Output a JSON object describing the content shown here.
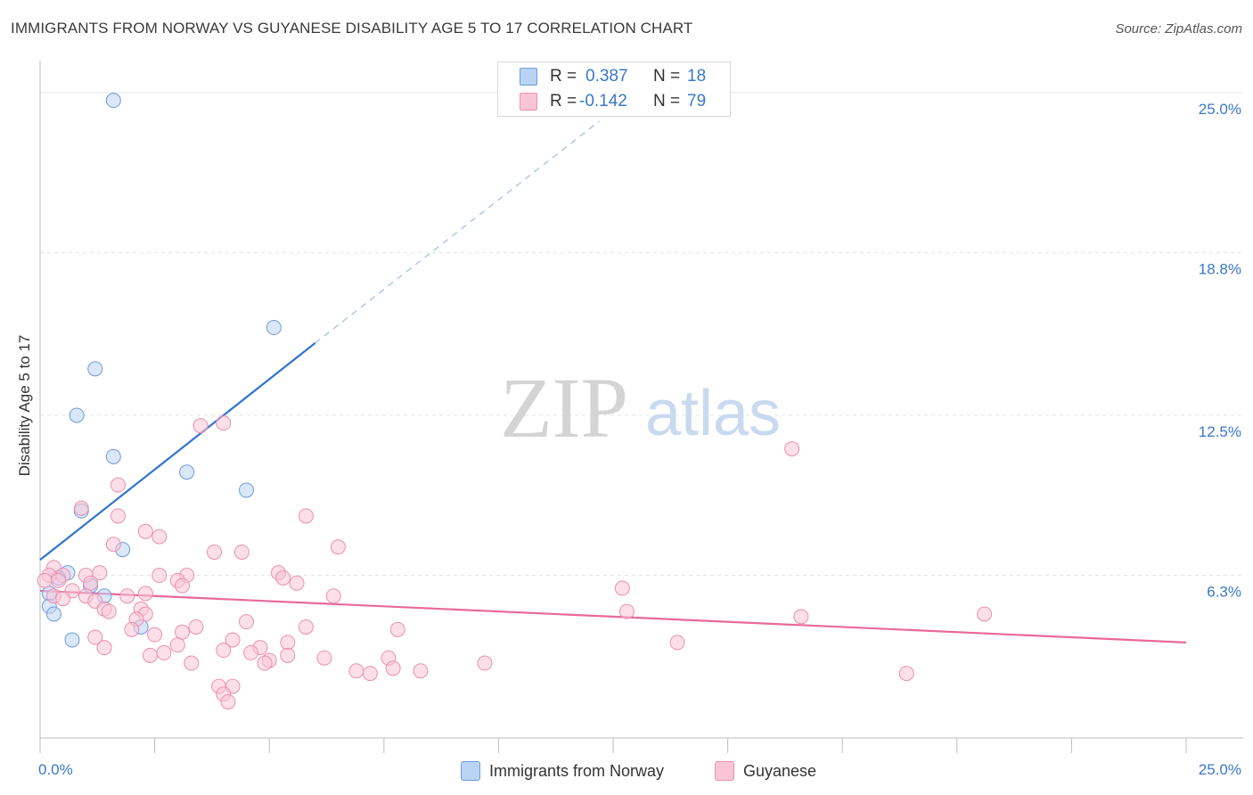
{
  "header": {
    "title": "IMMIGRANTS FROM NORWAY VS GUYANESE DISABILITY AGE 5 TO 17 CORRELATION CHART",
    "source": "Source: ZipAtlas.com"
  },
  "watermark": {
    "zip": "ZIP",
    "atlas": "atlas"
  },
  "legend": {
    "r_label": "R =",
    "n_label": "N =",
    "norway": {
      "r": "0.387",
      "n": "18"
    },
    "guyanese": {
      "r": "-0.142",
      "n": "79"
    }
  },
  "colors": {
    "norway_fill": "#b9d3f4",
    "norway_stroke": "#6f9bd8",
    "norway_line": "#2f74d0",
    "guyanese_fill": "#f9c5d6",
    "guyanese_stroke": "#ec8fb0",
    "guyanese_line": "#e8699a",
    "axis_text": "#3a78c9",
    "grid": "#e4e4e4"
  },
  "chart_data": {
    "type": "scatter",
    "title": "IMMIGRANTS FROM NORWAY VS GUYANESE DISABILITY AGE 5 TO 17 CORRELATION CHART",
    "xlabel": "",
    "ylabel": "Disability Age 5 to 17",
    "xlim": [
      0,
      25
    ],
    "ylim": [
      0,
      26
    ],
    "x_tick_labels": [
      "0.0%",
      "25.0%"
    ],
    "y_tick_labels": [
      "6.3%",
      "12.5%",
      "18.8%",
      "25.0%"
    ],
    "y_ticks": [
      6.3,
      12.5,
      18.8,
      25.0
    ],
    "grid": true,
    "legend_position": "top-center",
    "series": [
      {
        "name": "Immigrants from Norway",
        "color": "#b9d3f4",
        "points": [
          [
            1.6,
            24.7
          ],
          [
            5.1,
            15.9
          ],
          [
            1.2,
            14.3
          ],
          [
            0.8,
            12.5
          ],
          [
            1.6,
            10.9
          ],
          [
            3.2,
            10.3
          ],
          [
            4.5,
            9.6
          ],
          [
            0.9,
            8.8
          ],
          [
            1.8,
            7.3
          ],
          [
            0.6,
            6.4
          ],
          [
            0.4,
            6.2
          ],
          [
            1.1,
            5.9
          ],
          [
            0.2,
            5.6
          ],
          [
            1.4,
            5.5
          ],
          [
            0.2,
            5.1
          ],
          [
            0.3,
            4.8
          ],
          [
            2.2,
            4.3
          ],
          [
            0.7,
            3.8
          ]
        ],
        "trend": {
          "x": [
            0,
            6.0
          ],
          "y": [
            6.9,
            15.3
          ],
          "extended": {
            "x": [
              6.0,
              12.2
            ],
            "y": [
              15.3,
              23.9
            ]
          }
        }
      },
      {
        "name": "Guyanese",
        "color": "#f9c5d6",
        "points": [
          [
            3.5,
            12.1
          ],
          [
            4.0,
            12.2
          ],
          [
            16.4,
            11.2
          ],
          [
            1.7,
            9.8
          ],
          [
            0.9,
            8.9
          ],
          [
            1.7,
            8.6
          ],
          [
            5.8,
            8.6
          ],
          [
            2.3,
            8.0
          ],
          [
            2.6,
            7.8
          ],
          [
            1.6,
            7.5
          ],
          [
            3.8,
            7.2
          ],
          [
            4.4,
            7.2
          ],
          [
            6.5,
            7.4
          ],
          [
            0.3,
            6.6
          ],
          [
            0.2,
            6.3
          ],
          [
            0.5,
            6.3
          ],
          [
            1.0,
            6.3
          ],
          [
            1.3,
            6.4
          ],
          [
            2.6,
            6.3
          ],
          [
            3.2,
            6.3
          ],
          [
            5.2,
            6.4
          ],
          [
            5.3,
            6.2
          ],
          [
            0.1,
            6.1
          ],
          [
            0.4,
            6.1
          ],
          [
            1.1,
            6.0
          ],
          [
            3.0,
            6.1
          ],
          [
            3.1,
            5.9
          ],
          [
            5.6,
            6.0
          ],
          [
            12.7,
            5.8
          ],
          [
            0.7,
            5.7
          ],
          [
            1.0,
            5.5
          ],
          [
            1.9,
            5.5
          ],
          [
            0.3,
            5.5
          ],
          [
            6.4,
            5.5
          ],
          [
            0.5,
            5.4
          ],
          [
            1.2,
            5.3
          ],
          [
            1.4,
            5.0
          ],
          [
            1.5,
            4.9
          ],
          [
            2.2,
            5.0
          ],
          [
            2.3,
            4.8
          ],
          [
            2.1,
            4.6
          ],
          [
            12.8,
            4.9
          ],
          [
            4.5,
            4.5
          ],
          [
            16.6,
            4.7
          ],
          [
            20.6,
            4.8
          ],
          [
            2.0,
            4.2
          ],
          [
            3.4,
            4.3
          ],
          [
            5.8,
            4.3
          ],
          [
            7.8,
            4.2
          ],
          [
            2.5,
            4.0
          ],
          [
            3.1,
            4.1
          ],
          [
            4.2,
            3.8
          ],
          [
            1.2,
            3.9
          ],
          [
            5.4,
            3.7
          ],
          [
            13.9,
            3.7
          ],
          [
            3.0,
            3.6
          ],
          [
            1.4,
            3.5
          ],
          [
            4.8,
            3.5
          ],
          [
            2.7,
            3.3
          ],
          [
            4.0,
            3.4
          ],
          [
            4.6,
            3.3
          ],
          [
            2.4,
            3.2
          ],
          [
            5.4,
            3.2
          ],
          [
            6.2,
            3.1
          ],
          [
            7.6,
            3.1
          ],
          [
            5.0,
            3.0
          ],
          [
            3.3,
            2.9
          ],
          [
            4.9,
            2.9
          ],
          [
            9.7,
            2.9
          ],
          [
            6.9,
            2.6
          ],
          [
            7.7,
            2.7
          ],
          [
            8.3,
            2.6
          ],
          [
            7.2,
            2.5
          ],
          [
            18.9,
            2.5
          ],
          [
            3.9,
            2.0
          ],
          [
            4.2,
            2.0
          ],
          [
            4.0,
            1.7
          ],
          [
            4.1,
            1.4
          ],
          [
            2.3,
            5.6
          ]
        ],
        "trend": {
          "x": [
            0,
            25
          ],
          "y": [
            5.7,
            3.7
          ]
        }
      }
    ]
  }
}
